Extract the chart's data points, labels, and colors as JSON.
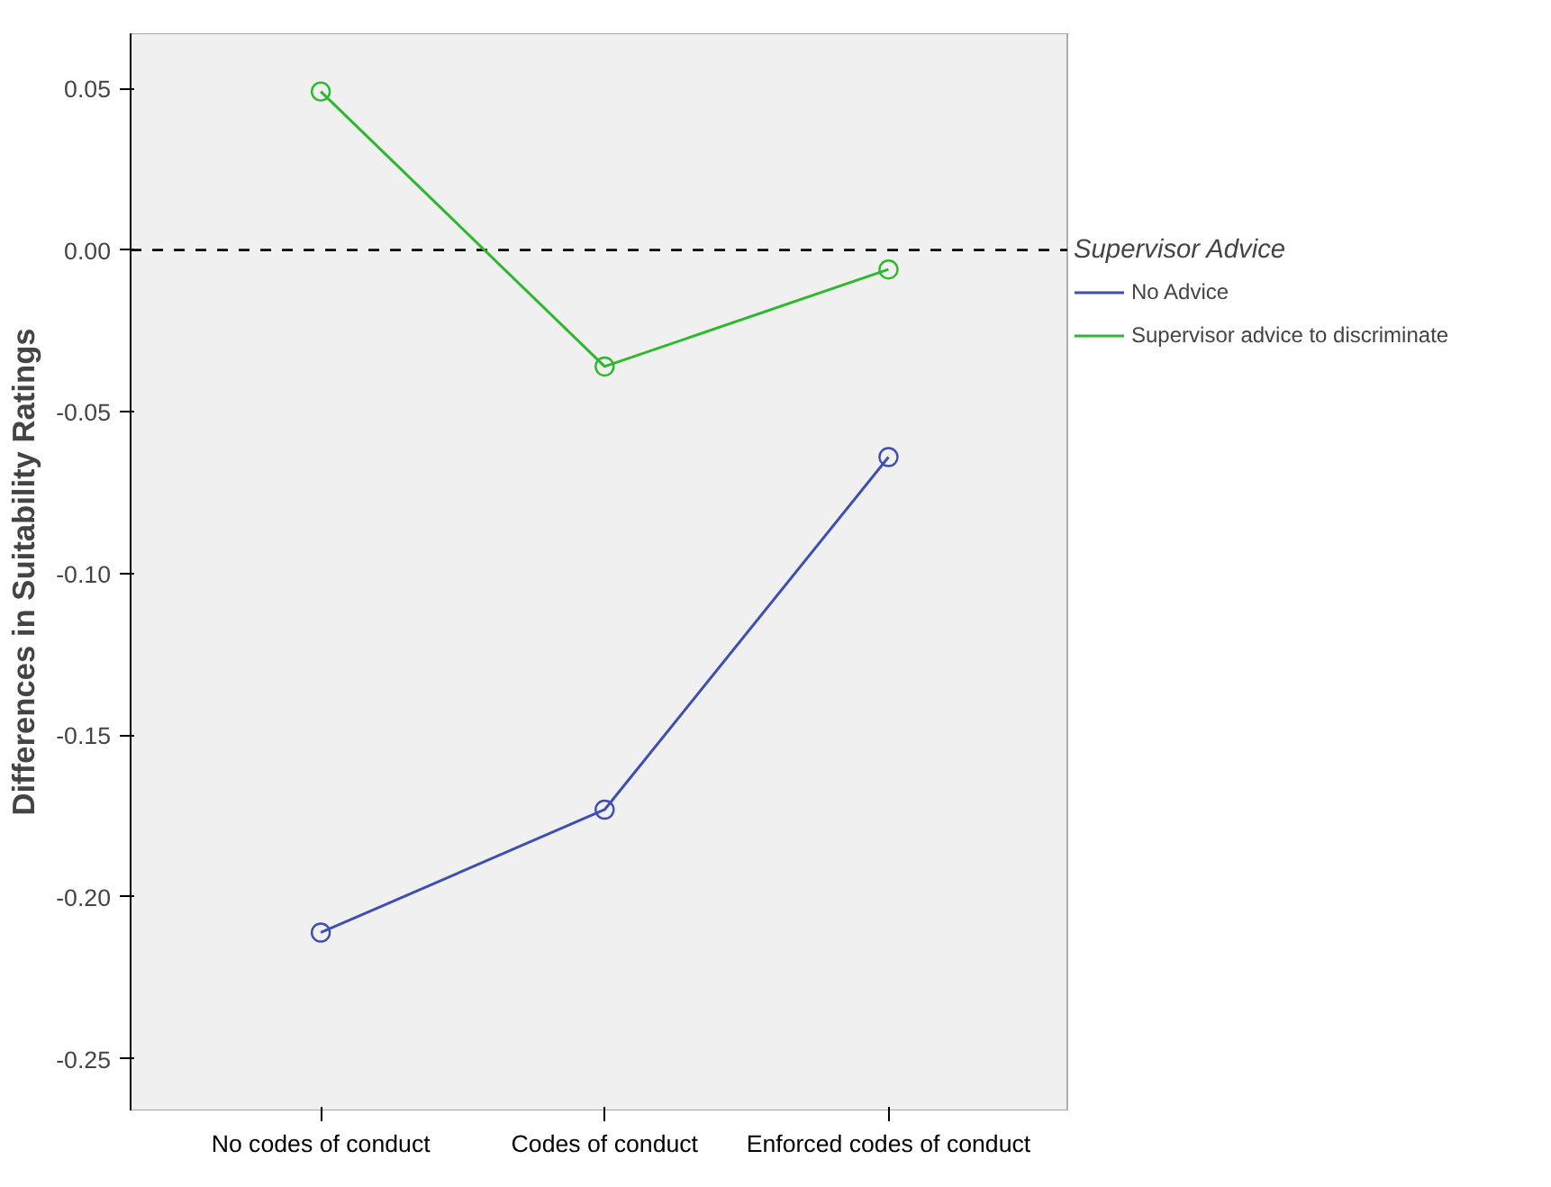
{
  "chart_data": {
    "type": "line",
    "ylabel": "Differences in Suitability Ratings",
    "legend_title": "Supervisor Advice",
    "categories": [
      "No codes of conduct",
      "Codes of conduct",
      "Enforced codes of conduct"
    ],
    "series": [
      {
        "name": "No Advice",
        "color": "#3e4fb0",
        "values": [
          -0.211,
          -0.173,
          -0.064
        ]
      },
      {
        "name": "Supervisor advice to discriminate",
        "color": "#2db82d",
        "values": [
          0.049,
          -0.036,
          -0.006
        ]
      }
    ],
    "ylim": [
      -0.266,
      0.067
    ],
    "yticks": [
      {
        "value": -0.25,
        "label": "-0.25"
      },
      {
        "value": -0.2,
        "label": "-0.20"
      },
      {
        "value": -0.15,
        "label": "-0.15"
      },
      {
        "value": -0.1,
        "label": "-0.10"
      },
      {
        "value": -0.05,
        "label": "-0.05"
      },
      {
        "value": 0,
        "label": "0.00"
      },
      {
        "value": 0.05,
        "label": "0.05"
      }
    ],
    "ref_lines": [
      {
        "axis": "y",
        "value": 0,
        "line_style": "dashed",
        "color": "#000000"
      }
    ],
    "marker": "circle",
    "line_style": "solid",
    "grid": false,
    "legend": "right"
  }
}
